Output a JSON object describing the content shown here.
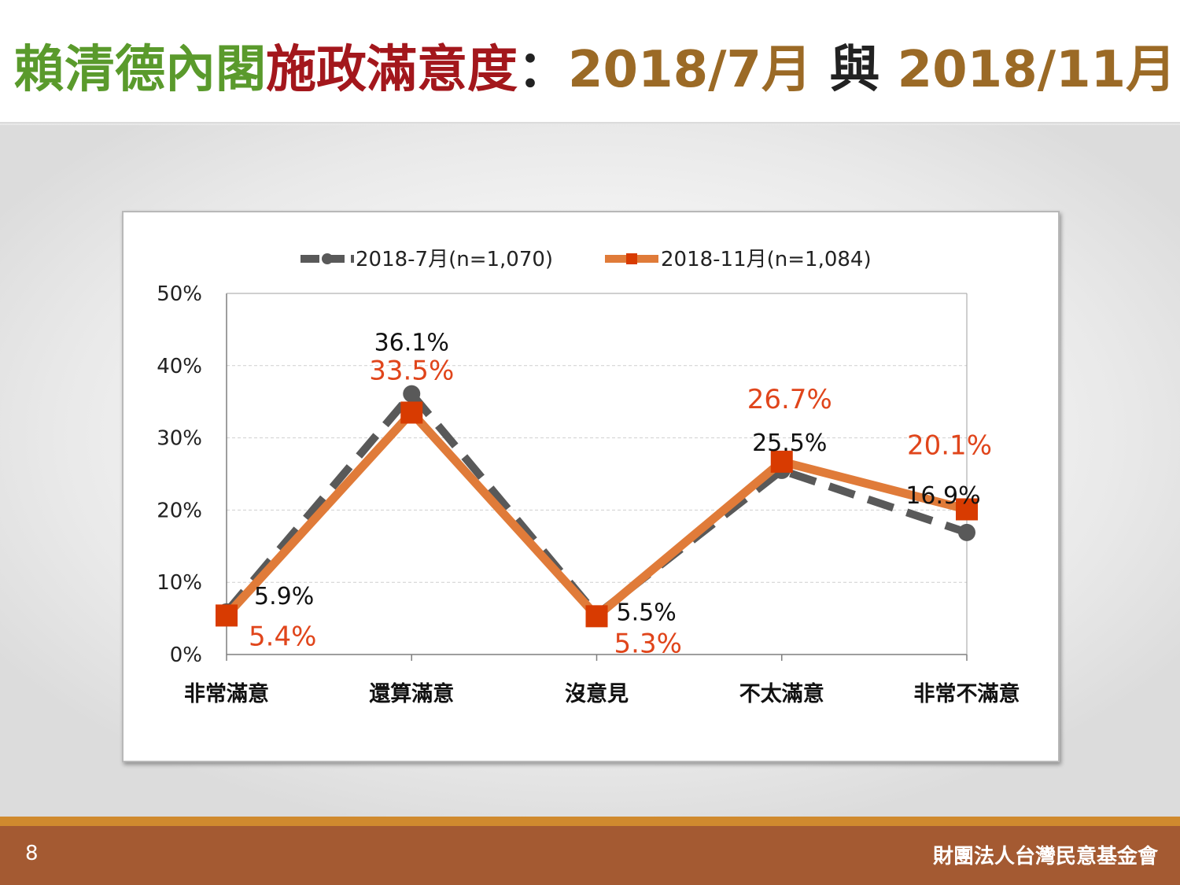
{
  "title": {
    "part1": "賴清德內閣",
    "part2": "施政滿意度",
    "colon": "：",
    "part3": "2018/7月",
    "joiner": " 與 ",
    "part4": "2018/11月"
  },
  "colors": {
    "title_green": "#5a9a2c",
    "title_red": "#a3171c",
    "title_brown": "#9b6a26",
    "series_jul": "#595959",
    "series_nov_line": "#e07b39",
    "series_nov_marker": "#d83b01",
    "label_nov": "#e0451b",
    "footer": "#a45a32",
    "footer_stripe": "#d08a2e"
  },
  "chart_data": {
    "type": "line",
    "categories": [
      "非常滿意",
      "還算滿意",
      "沒意見",
      "不太滿意",
      "非常不滿意"
    ],
    "series": [
      {
        "name": "2018-7月(n=1,070)",
        "values": [
          5.9,
          36.1,
          5.5,
          25.5,
          16.9
        ],
        "labels": [
          "5.9%",
          "36.1%",
          "5.5%",
          "25.5%",
          "16.9%"
        ],
        "style": "dashed",
        "marker": "circle"
      },
      {
        "name": "2018-11月(n=1,084)",
        "values": [
          5.4,
          33.5,
          5.3,
          26.7,
          20.1
        ],
        "labels": [
          "5.4%",
          "33.5%",
          "5.3%",
          "26.7%",
          "20.1%"
        ],
        "style": "solid",
        "marker": "square"
      }
    ],
    "ylim": [
      0,
      50
    ],
    "yticks": [
      0,
      10,
      20,
      30,
      40,
      50
    ],
    "ytick_labels": [
      "0%",
      "10%",
      "20%",
      "30%",
      "40%",
      "50%"
    ],
    "grid": true,
    "legend_position": "top"
  },
  "footer": {
    "page_number": "8",
    "organization": "財團法人台灣民意基金會"
  }
}
